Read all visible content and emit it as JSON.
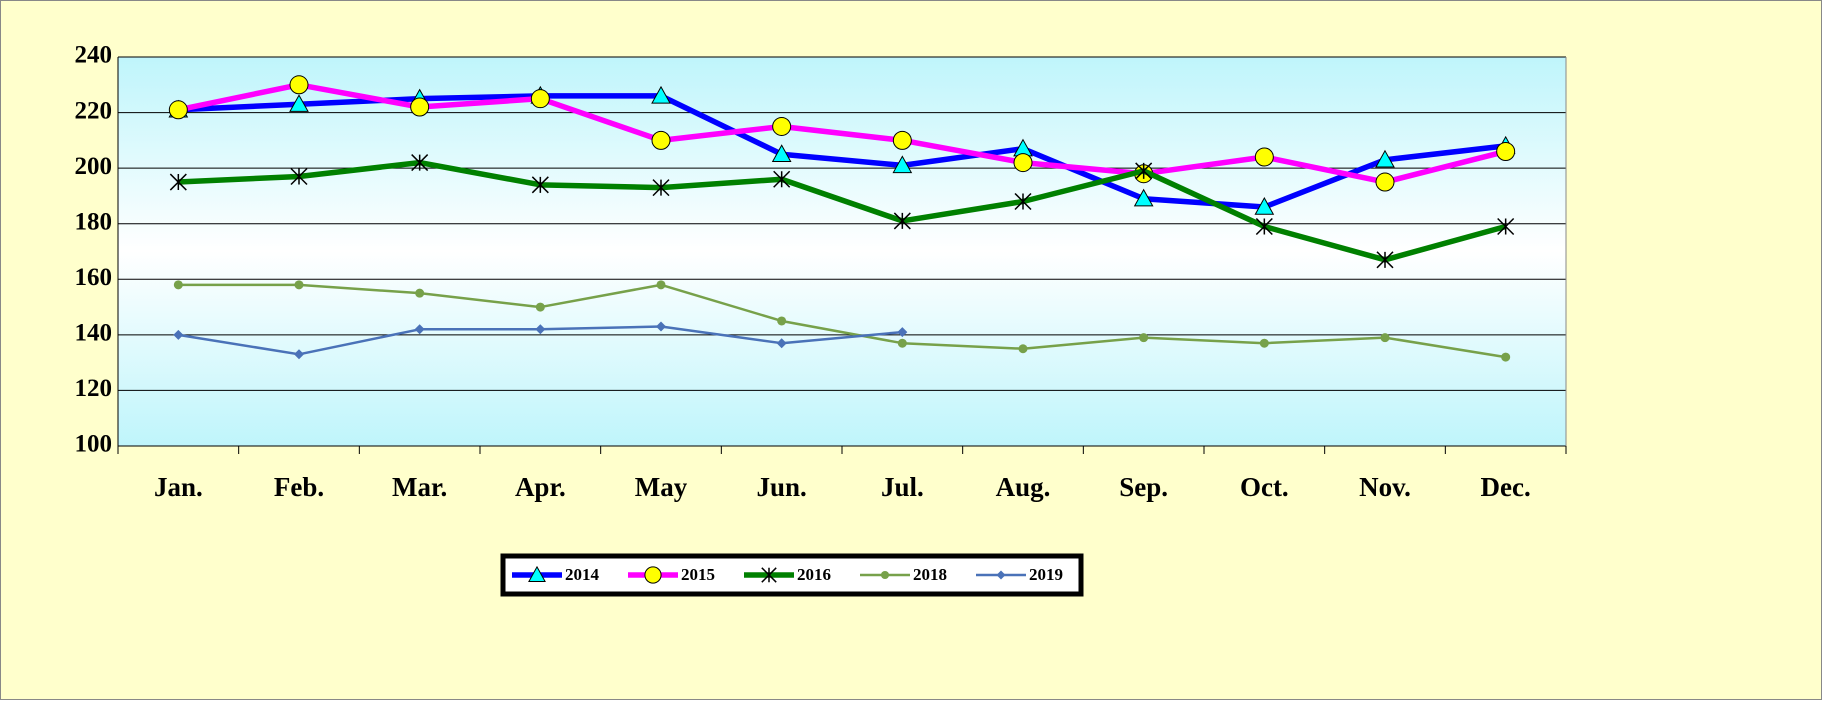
{
  "chart_data": {
    "type": "line",
    "categories": [
      "Jan.",
      "Feb.",
      "Mar.",
      "Apr.",
      "May",
      "Jun.",
      "Jul.",
      "Aug.",
      "Sep.",
      "Oct.",
      "Nov.",
      "Dec."
    ],
    "series": [
      {
        "name": "2014",
        "color": "#0000ff",
        "marker": "triangle",
        "values": [
          221,
          223,
          225,
          226,
          226,
          205,
          201,
          207,
          189,
          186,
          203,
          208
        ]
      },
      {
        "name": "2015",
        "color": "#ff00ff",
        "marker": "circle",
        "values": [
          221,
          230,
          222,
          225,
          210,
          215,
          210,
          202,
          198,
          204,
          195,
          206
        ]
      },
      {
        "name": "2016",
        "color": "#008000",
        "marker": "star",
        "values": [
          195,
          197,
          202,
          194,
          193,
          196,
          181,
          188,
          199,
          179,
          167,
          179
        ]
      },
      {
        "name": "2018",
        "color": "#77a14a",
        "marker": "dot",
        "values": [
          158,
          158,
          155,
          150,
          158,
          145,
          137,
          135,
          139,
          137,
          139,
          132
        ]
      },
      {
        "name": "2019",
        "color": "#4a72b8",
        "marker": "diamond",
        "values": [
          140,
          133,
          142,
          142,
          143,
          137,
          141,
          null,
          null,
          null,
          null,
          null
        ]
      }
    ],
    "ylim": [
      100,
      240
    ],
    "yticks": [
      100,
      120,
      140,
      160,
      180,
      200,
      220,
      240
    ],
    "grid": true,
    "legend": "bottom"
  }
}
